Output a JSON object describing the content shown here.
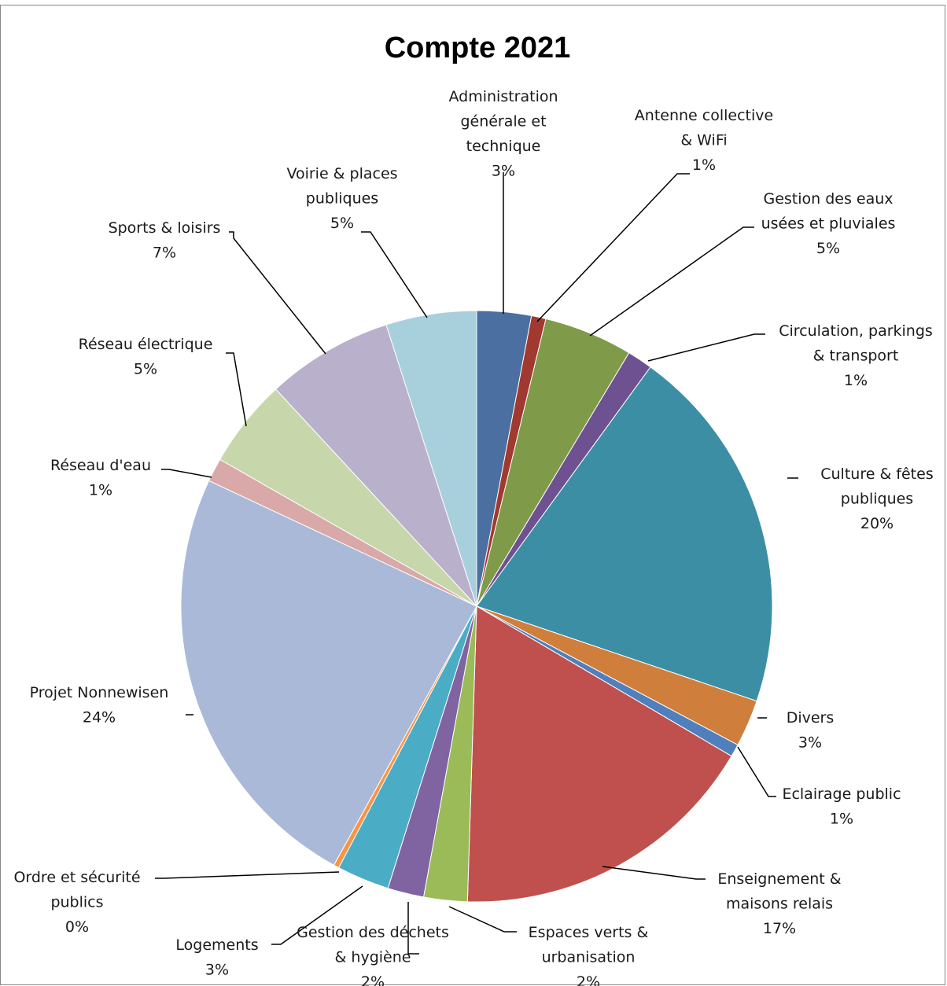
{
  "chart_data": {
    "type": "pie",
    "title": "Compte 2021",
    "start_angle_deg": 0,
    "direction": "clockwise",
    "show_category_name": true,
    "show_percentage": true,
    "legend": "none",
    "series": [
      {
        "slices": [
          {
            "label": "Administration générale et technique",
            "value": 3.0,
            "percent": "3%",
            "color": "#4a6fa0"
          },
          {
            "label": "Antenne collective & WiFi",
            "value": 0.8,
            "percent": "1%",
            "color": "#a0392f"
          },
          {
            "label": "Gestion des eaux usées et pluviales",
            "value": 4.9,
            "percent": "5%",
            "color": "#7f9a48"
          },
          {
            "label": "Circulation, parkings & transport",
            "value": 1.4,
            "percent": "1%",
            "color": "#6e5190"
          },
          {
            "label": "Culture & fêtes publiques",
            "value": 20.4,
            "percent": "20%",
            "color": "#3c8ea4"
          },
          {
            "label": "Divers",
            "value": 2.6,
            "percent": "3%",
            "color": "#d07e3c"
          },
          {
            "label": "Eclairage public",
            "value": 0.7,
            "percent": "1%",
            "color": "#4f80bd"
          },
          {
            "label": "Enseignement & maisons relais",
            "value": 17.2,
            "percent": "17%",
            "color": "#c0504d"
          },
          {
            "label": "Espaces verts & urbanisation",
            "value": 2.4,
            "percent": "2%",
            "color": "#9bbb59"
          },
          {
            "label": "Gestion des déchets & hygiène",
            "value": 2.0,
            "percent": "2%",
            "color": "#8064a2"
          },
          {
            "label": "Logements",
            "value": 2.9,
            "percent": "3%",
            "color": "#4bacc6"
          },
          {
            "label": "Ordre et sécurité publics",
            "value": 0.3,
            "percent": "0%",
            "color": "#f79646"
          },
          {
            "label": "Projet Nonnewisen",
            "value": 24.2,
            "percent": "24%",
            "color": "#aab9d7"
          },
          {
            "label": "Réseau d'eau",
            "value": 1.3,
            "percent": "1%",
            "color": "#d9a8a8"
          },
          {
            "label": "Réseau électrique",
            "value": 4.9,
            "percent": "5%",
            "color": "#c7d7ab"
          },
          {
            "label": "Sports & loisirs",
            "value": 7.0,
            "percent": "7%",
            "color": "#b9b0cb"
          },
          {
            "label": "Voirie & places publiques",
            "value": 5.0,
            "percent": "5%",
            "color": "#a8cfdc"
          }
        ]
      }
    ],
    "data_labels": [
      {
        "lines": [
          "Administration",
          "générale et",
          "technique",
          "3%"
        ]
      },
      {
        "lines": [
          "Antenne collective",
          "& WiFi",
          "1%"
        ]
      },
      {
        "lines": [
          "Gestion des eaux",
          "usées et pluviales",
          "5%"
        ]
      },
      {
        "lines": [
          "Circulation, parkings",
          "& transport",
          "1%"
        ]
      },
      {
        "lines": [
          "Culture & fêtes",
          "publiques",
          "20%"
        ]
      },
      {
        "lines": [
          "Divers",
          "3%"
        ]
      },
      {
        "lines": [
          "Eclairage public",
          "1%"
        ]
      },
      {
        "lines": [
          "Enseignement &",
          "maisons relais",
          "17%"
        ]
      },
      {
        "lines": [
          "Espaces verts &",
          "urbanisation",
          "2%"
        ]
      },
      {
        "lines": [
          "Gestion des déchets",
          "& hygiène",
          "2%"
        ]
      },
      {
        "lines": [
          "Logements",
          "3%"
        ]
      },
      {
        "lines": [
          "Ordre et sécurité",
          "publics",
          "0%"
        ]
      },
      {
        "lines": [
          "Projet Nonnewisen",
          "24%"
        ]
      },
      {
        "lines": [
          "Réseau d'eau",
          "1%"
        ]
      },
      {
        "lines": [
          "Réseau électrique",
          "5%"
        ]
      },
      {
        "lines": [
          "Sports & loisirs",
          "7%"
        ]
      },
      {
        "lines": [
          "Voirie & places",
          "publiques",
          "5%"
        ]
      }
    ]
  }
}
